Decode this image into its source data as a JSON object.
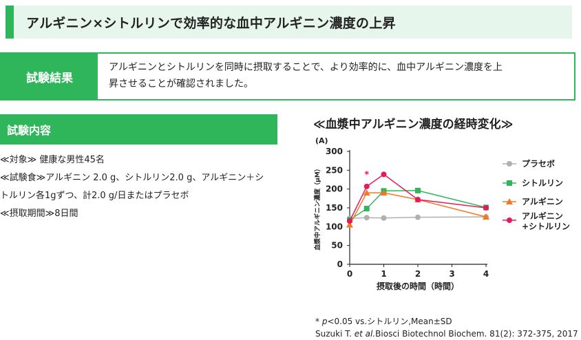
{
  "header": {
    "title": "アルギニン×シトルリンで効率的な血中アルギニン濃度の上昇"
  },
  "result": {
    "label": "試験結果",
    "text_line1": "アルギニンとシトルリンを同時に摂取することで、より効率的に、血中アルギニン濃度を上",
    "text_line2": "昇させることが確認されました。"
  },
  "content": {
    "heading": "試験内容",
    "lines": [
      "≪対象≫ 健康な男性45名",
      "≪試験食≫アルギニン 2.0 g、シトルリン2.0 g、アルギニン＋シ",
      "トルリン各1gずつ、計2.0 g/日またはプラセボ",
      "≪摂取期間≫8日間"
    ]
  },
  "chart_title": "≪血漿中アルギニン濃度の経時変化≫",
  "footnote": {
    "p_prefix": "* ",
    "p_italic": "p",
    "p_rest": "<0.05 vs.シトルリン,Mean±SD",
    "ref_prefix": "Suzuki T. ",
    "ref_italic": "et al.",
    "ref_rest": "Biosci Biotechnol Biochem. 81(2): 372-375, 2017"
  },
  "chart_data": {
    "type": "line",
    "panel_label": "(A)",
    "xlabel": "摂取後の時間（時間）",
    "ylabel": "血漿中アルギニン濃度（μM）",
    "xlim": [
      0,
      4
    ],
    "ylim": [
      0,
      300
    ],
    "x_ticks": [
      0,
      1,
      2,
      3,
      4
    ],
    "y_ticks": [
      0,
      50,
      100,
      150,
      200,
      250,
      300
    ],
    "grid": false,
    "legend_position": "right",
    "significance_mark": "*",
    "series": [
      {
        "name": "プラセボ",
        "color": "#b0b0b0",
        "marker": "circle",
        "x": [
          0,
          0.5,
          1,
          2,
          4
        ],
        "y": [
          122,
          124,
          123,
          125,
          126
        ]
      },
      {
        "name": "シトルリン",
        "color": "#2fb65a",
        "marker": "square",
        "x": [
          0,
          0.5,
          1,
          2,
          4
        ],
        "y": [
          118,
          148,
          195,
          196,
          151
        ]
      },
      {
        "name": "アルギニン",
        "color": "#f07a22",
        "marker": "triangle",
        "x": [
          0,
          0.5,
          1,
          2,
          4
        ],
        "y": [
          105,
          190,
          190,
          172,
          126
        ]
      },
      {
        "name_line1": "アルギニン",
        "name_line2": "+シトルリン",
        "color": "#e8195a",
        "marker": "circle",
        "x": [
          0,
          0.5,
          1,
          2,
          4
        ],
        "y": [
          115,
          207,
          239,
          172,
          150
        ]
      }
    ]
  }
}
